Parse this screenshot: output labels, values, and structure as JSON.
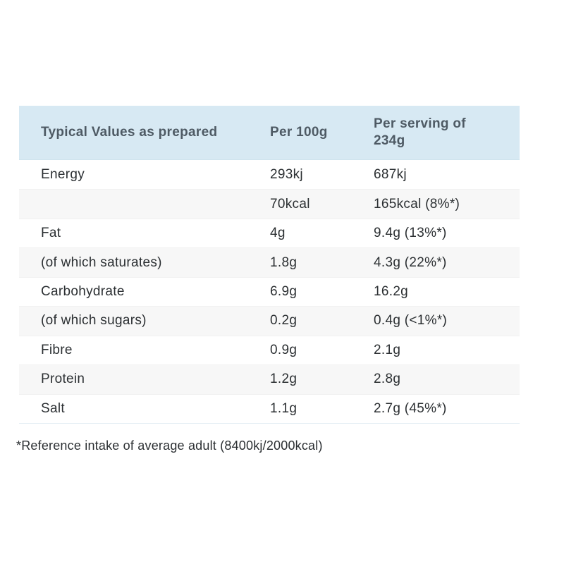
{
  "colors": {
    "header_bg": "#d7e9f3",
    "header_text": "#4e5a64",
    "body_text": "#2b2f32",
    "alt_row_bg": "#f7f7f7",
    "row_divider": "#f1f1f1",
    "header_divider": "#cfe3ee"
  },
  "table": {
    "headers": [
      "Typical Values as prepared",
      "Per 100g",
      "Per serving of 234g"
    ],
    "rows": [
      {
        "label": "Energy",
        "per_100g": "293kj",
        "per_serving": "687kj"
      },
      {
        "label": "",
        "per_100g": "70kcal",
        "per_serving": "165kcal (8%*)"
      },
      {
        "label": "Fat",
        "per_100g": "4g",
        "per_serving": "9.4g (13%*)"
      },
      {
        "label": "(of which saturates)",
        "per_100g": "1.8g",
        "per_serving": "4.3g (22%*)"
      },
      {
        "label": "Carbohydrate",
        "per_100g": "6.9g",
        "per_serving": "16.2g"
      },
      {
        "label": "(of which sugars)",
        "per_100g": "0.2g",
        "per_serving": "0.4g (<1%*)"
      },
      {
        "label": "Fibre",
        "per_100g": "0.9g",
        "per_serving": "2.1g"
      },
      {
        "label": "Protein",
        "per_100g": "1.2g",
        "per_serving": "2.8g"
      },
      {
        "label": "Salt",
        "per_100g": "1.1g",
        "per_serving": "2.7g (45%*)"
      }
    ]
  },
  "footnote": "*Reference intake of average adult (8400kj/2000kcal)",
  "chart_data": {
    "type": "table",
    "columns": [
      "Typical Values as prepared",
      "Per 100g",
      "Per serving of 234g"
    ],
    "rows": [
      [
        "Energy",
        "293kj",
        "687kj"
      ],
      [
        "",
        "70kcal",
        "165kcal (8%*)"
      ],
      [
        "Fat",
        "4g",
        "9.4g (13%*)"
      ],
      [
        "(of which saturates)",
        "1.8g",
        "4.3g (22%*)"
      ],
      [
        "Carbohydrate",
        "6.9g",
        "16.2g"
      ],
      [
        "(of which sugars)",
        "0.2g",
        "0.4g (<1%*)"
      ],
      [
        "Fibre",
        "0.9g",
        "2.1g"
      ],
      [
        "Protein",
        "1.2g",
        "2.8g"
      ],
      [
        "Salt",
        "1.1g",
        "2.7g (45%*)"
      ]
    ],
    "footnote": "*Reference intake of average adult (8400kj/2000kcal)"
  }
}
